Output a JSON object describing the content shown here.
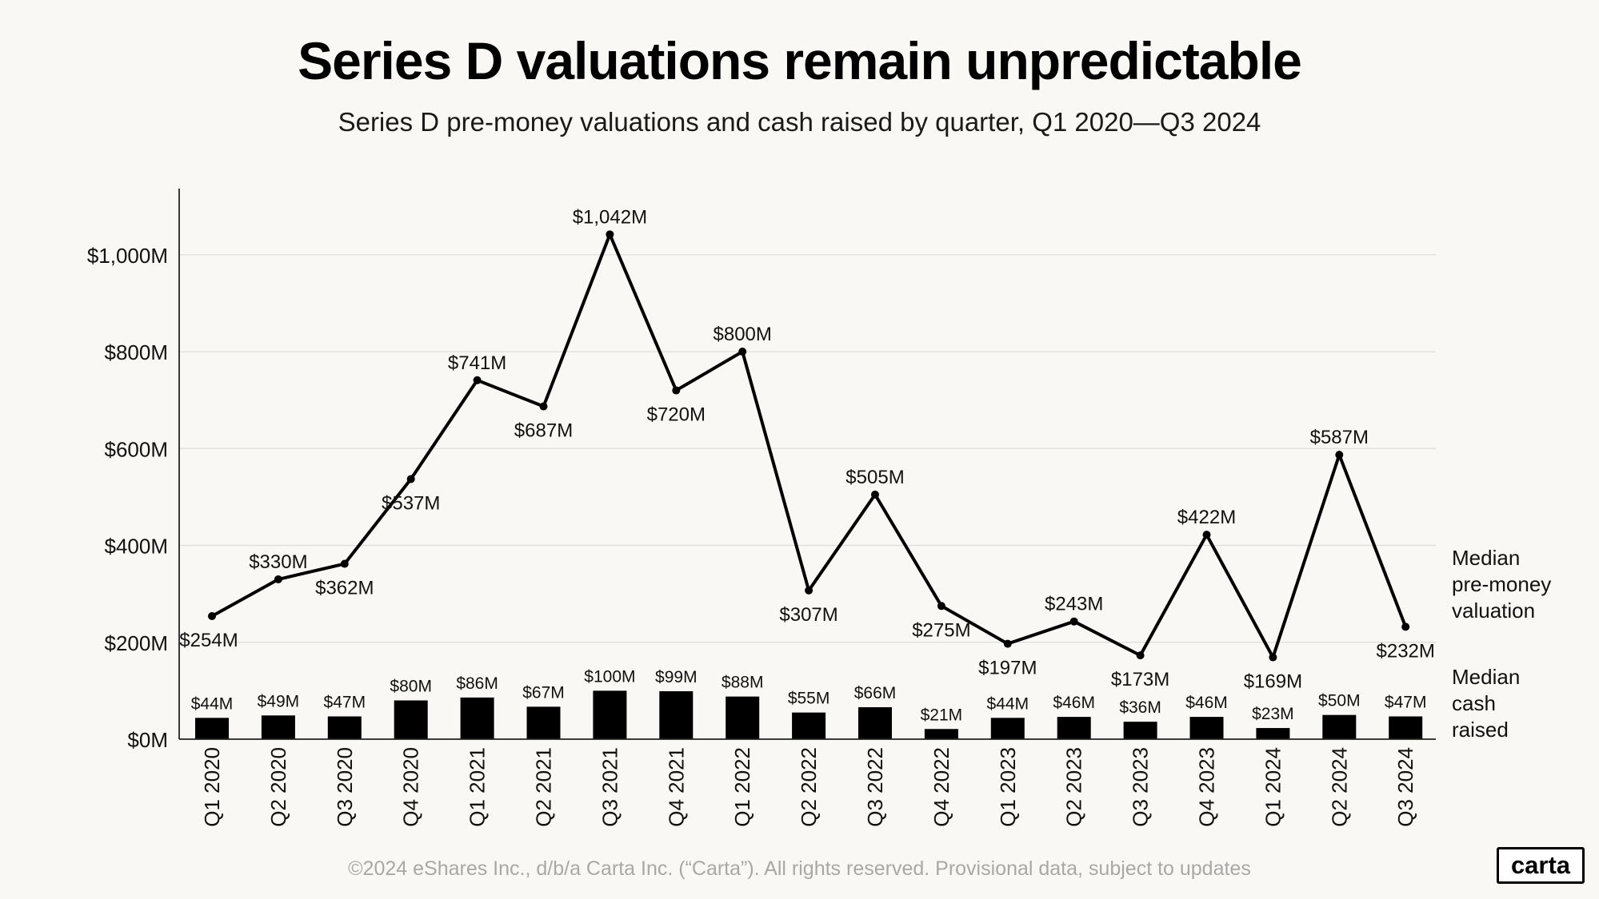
{
  "header": {
    "title": "Series D valuations remain unpredictable",
    "subtitle": "Series D pre-money valuations and cash raised by quarter, Q1 2020—Q3 2024"
  },
  "footer": {
    "copyright": "©2024 eShares Inc., d/b/a Carta Inc. (“Carta”). All rights reserved. Provisional data, subject to updates",
    "logo_text": "carta"
  },
  "chart_data": {
    "type": "line+bar",
    "title": "Series D valuations remain unpredictable",
    "subtitle": "Series D pre-money valuations and cash raised by quarter, Q1 2020—Q3 2024",
    "xlabel": "",
    "ylabel": "",
    "ylim": [
      0,
      1100
    ],
    "y_ticks": [
      {
        "value": 0,
        "label": "$0M"
      },
      {
        "value": 200,
        "label": "$200M"
      },
      {
        "value": 400,
        "label": "$400M"
      },
      {
        "value": 600,
        "label": "$600M"
      },
      {
        "value": 800,
        "label": "$800M"
      },
      {
        "value": 1000,
        "label": "$1,000M"
      }
    ],
    "grid": true,
    "categories": [
      "Q1 2020",
      "Q2 2020",
      "Q3 2020",
      "Q4 2020",
      "Q1 2021",
      "Q2 2021",
      "Q3 2021",
      "Q4 2021",
      "Q1 2022",
      "Q2 2022",
      "Q3 2022",
      "Q4 2022",
      "Q1 2023",
      "Q2 2023",
      "Q3 2023",
      "Q4 2023",
      "Q1 2024",
      "Q2 2024",
      "Q3 2024"
    ],
    "series": [
      {
        "name": "Median pre-money valuation",
        "legend_lines": [
          "Median",
          "pre-money",
          "valuation"
        ],
        "type": "line",
        "color": "#000000",
        "values": [
          254,
          330,
          362,
          537,
          741,
          687,
          1042,
          720,
          800,
          307,
          505,
          275,
          197,
          243,
          173,
          422,
          169,
          587,
          232
        ],
        "labels": [
          "$254M",
          "$330M",
          "$362M",
          "$537M",
          "$741M",
          "$687M",
          "$1,042M",
          "$720M",
          "$800M",
          "$307M",
          "$505M",
          "$275M",
          "$197M",
          "$243M",
          "$173M",
          "$422M",
          "$169M",
          "$587M",
          "$232M"
        ],
        "label_pos": [
          "below",
          "above",
          "below",
          "below",
          "above",
          "below",
          "above",
          "below",
          "above",
          "below",
          "above",
          "below",
          "below",
          "above",
          "below",
          "above",
          "below",
          "above",
          "below"
        ]
      },
      {
        "name": "Median cash raised",
        "legend_lines": [
          "Median",
          "cash",
          "raised"
        ],
        "type": "bar",
        "color": "#000000",
        "values": [
          44,
          49,
          47,
          80,
          86,
          67,
          100,
          99,
          88,
          55,
          66,
          21,
          44,
          46,
          36,
          46,
          23,
          50,
          47
        ],
        "labels": [
          "$44M",
          "$49M",
          "$47M",
          "$80M",
          "$86M",
          "$67M",
          "$100M",
          "$99M",
          "$88M",
          "$55M",
          "$66M",
          "$21M",
          "$44M",
          "$46M",
          "$36M",
          "$46M",
          "$23M",
          "$50M",
          "$47M"
        ]
      }
    ]
  }
}
